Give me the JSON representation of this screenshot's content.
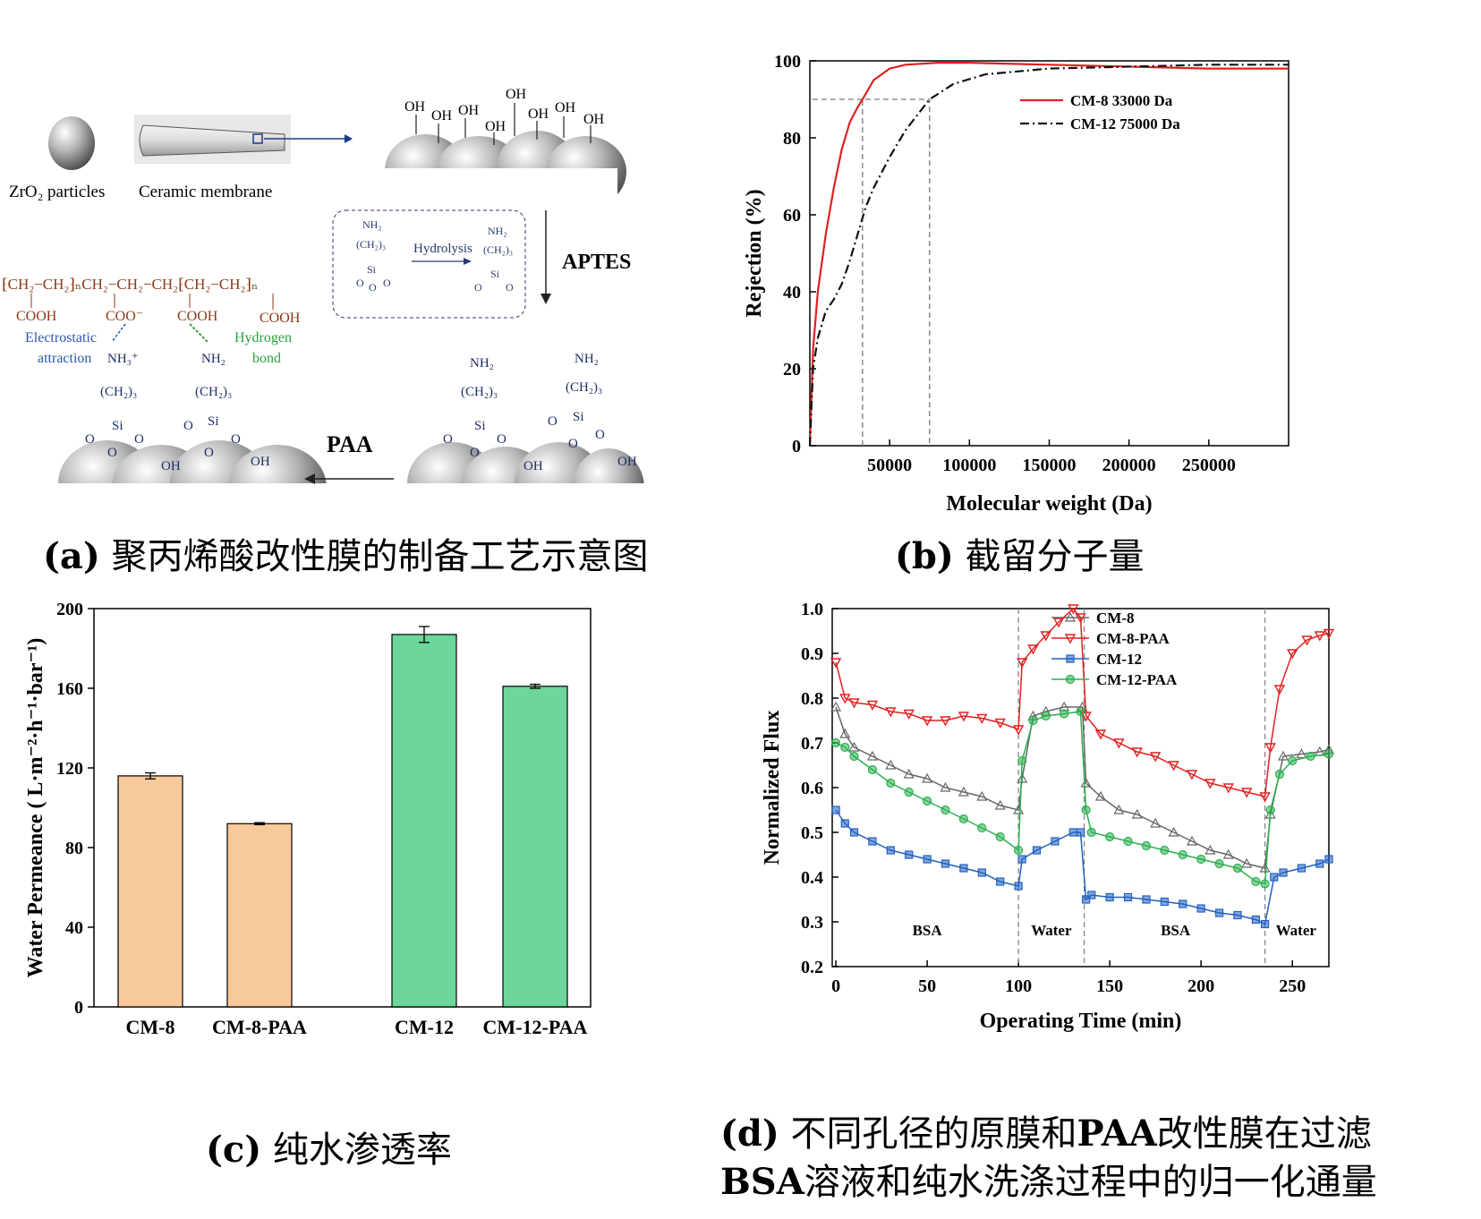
{
  "captions": {
    "a_tag": "(a)",
    "a_text": "聚丙烯酸改性膜的制备工艺示意图",
    "b_tag": "(b)",
    "b_text": "截留分子量",
    "c_tag": "(c)",
    "c_text": "纯水渗透率",
    "d_tag": "(d)",
    "d_text_line1": "不同孔径的原膜和",
    "d_paa": "PAA",
    "d_text_line1b": "改性膜在过滤",
    "d_bsa": "BSA",
    "d_text_line2": "溶液和纯水洗涤过程中的归一化通量"
  },
  "diagram": {
    "zro2_label": "ZrO₂ particles",
    "ceramic_label": "Ceramic membrane",
    "aptes_label": "APTES",
    "paa_label": "PAA",
    "hydrolysis_label": "Hydrolysis",
    "electrostatic_label": "Electrostatic",
    "attraction_label": "attraction",
    "hydrogen_label": "Hydrogen",
    "bond_label": "bond",
    "oh": "OH",
    "cooh": "COOH",
    "coo": "COO⁻",
    "nh2": "NH₂",
    "nh3": "NH₃⁺",
    "ch23": "(CH₂)₃",
    "si": "Si",
    "o": "O",
    "polymer_chain": "⁅CH₂−CH₂⁆ₙCH₂−CH₂−CH₂⁅CH₂−CH₂⁆ₙ"
  },
  "chart_data": [
    {
      "id": "b",
      "type": "line",
      "xlabel": "Molecular weight (Da)",
      "ylabel": "Rejection (%)",
      "xlim": [
        0,
        300000
      ],
      "ylim": [
        0,
        100
      ],
      "xticks": [
        50000,
        100000,
        150000,
        200000,
        250000
      ],
      "yticks": [
        0,
        20,
        40,
        60,
        80,
        100
      ],
      "series": [
        {
          "name": "CM-8   33000 Da",
          "color": "#e02020",
          "dash": "solid",
          "x": [
            0,
            2000,
            5000,
            10000,
            15000,
            20000,
            25000,
            30000,
            33000,
            40000,
            50000,
            60000,
            80000,
            100000,
            150000,
            200000,
            250000,
            300000
          ],
          "y": [
            0,
            25,
            40,
            55,
            67,
            77,
            84,
            88,
            90,
            95,
            98,
            99,
            99.5,
            99.5,
            99,
            98.5,
            98,
            98
          ]
        },
        {
          "name": "CM-12 75000 Da",
          "color": "#111111",
          "dash": "dashdot",
          "x": [
            0,
            2000,
            5000,
            10000,
            15000,
            20000,
            25000,
            30000,
            35000,
            40000,
            50000,
            60000,
            75000,
            90000,
            110000,
            150000,
            200000,
            250000,
            300000
          ],
          "y": [
            0,
            20,
            28,
            35,
            38,
            42,
            48,
            55,
            62,
            67,
            75,
            82,
            90,
            94,
            96.5,
            98,
            98.5,
            99,
            99
          ]
        }
      ],
      "reference_lines": {
        "y": 90,
        "x1": 33000,
        "x2": 75000
      }
    },
    {
      "id": "c",
      "type": "bar",
      "ylabel": "Water Permeance ( L·m⁻²·h⁻¹·bar⁻¹)",
      "ylim": [
        0,
        200
      ],
      "yticks": [
        0,
        40,
        80,
        120,
        160,
        200
      ],
      "categories": [
        "CM-8",
        "CM-8-PAA",
        "CM-12",
        "CM-12-PAA"
      ],
      "values": [
        116,
        92,
        187,
        161
      ],
      "errors": [
        1.5,
        0.5,
        4,
        1
      ],
      "colors": [
        "#f8c99a",
        "#f8c99a",
        "#6dd69a",
        "#6dd69a"
      ]
    },
    {
      "id": "d",
      "type": "line",
      "xlabel": "Operating Time (min)",
      "ylabel": "Normalized Flux",
      "xlim": [
        -2,
        270
      ],
      "ylim": [
        0.2,
        1.0
      ],
      "xticks": [
        0,
        50,
        100,
        150,
        200,
        250
      ],
      "yticks": [
        0.2,
        0.3,
        0.4,
        0.5,
        0.6,
        0.7,
        0.8,
        0.9,
        1.0
      ],
      "phase_lines": [
        100,
        136,
        235
      ],
      "phase_labels": [
        {
          "text": "BSA",
          "x": 50
        },
        {
          "text": "Water",
          "x": 118
        },
        {
          "text": "BSA",
          "x": 186
        },
        {
          "text": "Water",
          "x": 252
        }
      ],
      "series": [
        {
          "name": "CM-8",
          "color": "#666666",
          "marker": "triangle-up",
          "x": [
            0,
            5,
            10,
            20,
            30,
            40,
            50,
            60,
            70,
            80,
            90,
            100,
            102,
            108,
            115,
            125,
            135,
            137,
            145,
            155,
            165,
            175,
            185,
            195,
            205,
            215,
            225,
            235,
            238,
            245,
            255,
            265,
            270
          ],
          "y": [
            0.78,
            0.72,
            0.69,
            0.67,
            0.65,
            0.63,
            0.62,
            0.6,
            0.59,
            0.58,
            0.56,
            0.55,
            0.62,
            0.76,
            0.77,
            0.78,
            0.78,
            0.61,
            0.58,
            0.55,
            0.54,
            0.52,
            0.5,
            0.48,
            0.46,
            0.45,
            0.43,
            0.42,
            0.54,
            0.67,
            0.675,
            0.68,
            0.685
          ]
        },
        {
          "name": "CM-8-PAA",
          "color": "#e02020",
          "marker": "triangle-down",
          "x": [
            0,
            5,
            10,
            20,
            30,
            40,
            50,
            60,
            70,
            80,
            90,
            100,
            102,
            108,
            115,
            122,
            130,
            134,
            137,
            145,
            155,
            165,
            175,
            185,
            195,
            205,
            215,
            225,
            235,
            238,
            243,
            250,
            258,
            265,
            270
          ],
          "y": [
            0.88,
            0.8,
            0.79,
            0.785,
            0.77,
            0.765,
            0.75,
            0.75,
            0.76,
            0.755,
            0.745,
            0.73,
            0.88,
            0.91,
            0.94,
            0.97,
            1.0,
            0.98,
            0.76,
            0.72,
            0.7,
            0.68,
            0.67,
            0.65,
            0.63,
            0.61,
            0.6,
            0.59,
            0.58,
            0.69,
            0.82,
            0.9,
            0.93,
            0.94,
            0.945
          ]
        },
        {
          "name": "CM-12",
          "color": "#2060c0",
          "marker": "square",
          "x": [
            0,
            5,
            10,
            20,
            30,
            40,
            50,
            60,
            70,
            80,
            90,
            100,
            102,
            110,
            120,
            130,
            134,
            137,
            140,
            150,
            160,
            170,
            180,
            190,
            200,
            210,
            220,
            230,
            235,
            240,
            245,
            255,
            265,
            270
          ],
          "y": [
            0.55,
            0.52,
            0.5,
            0.48,
            0.46,
            0.45,
            0.44,
            0.43,
            0.42,
            0.41,
            0.39,
            0.38,
            0.44,
            0.46,
            0.48,
            0.5,
            0.5,
            0.35,
            0.36,
            0.355,
            0.355,
            0.35,
            0.345,
            0.34,
            0.33,
            0.32,
            0.315,
            0.305,
            0.295,
            0.4,
            0.41,
            0.42,
            0.43,
            0.44
          ]
        },
        {
          "name": "CM-12-PAA",
          "color": "#2cb050",
          "marker": "circle",
          "x": [
            0,
            5,
            10,
            20,
            30,
            40,
            50,
            60,
            70,
            80,
            90,
            100,
            102,
            108,
            115,
            125,
            134,
            137,
            140,
            150,
            160,
            170,
            180,
            190,
            200,
            210,
            220,
            230,
            235,
            238,
            243,
            250,
            260,
            270
          ],
          "y": [
            0.7,
            0.69,
            0.67,
            0.64,
            0.61,
            0.59,
            0.57,
            0.55,
            0.53,
            0.51,
            0.49,
            0.46,
            0.66,
            0.75,
            0.76,
            0.765,
            0.77,
            0.55,
            0.5,
            0.49,
            0.48,
            0.47,
            0.46,
            0.45,
            0.44,
            0.43,
            0.42,
            0.39,
            0.385,
            0.55,
            0.63,
            0.66,
            0.67,
            0.675
          ]
        }
      ]
    }
  ]
}
